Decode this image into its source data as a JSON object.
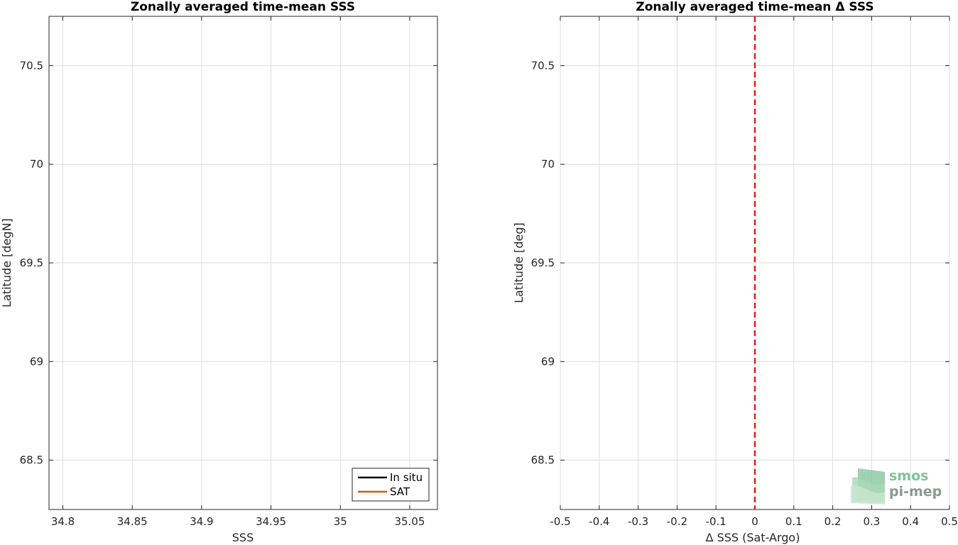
{
  "chart_data": [
    {
      "type": "line",
      "title": "Zonally averaged time-mean SSS",
      "xlabel": "SSS",
      "ylabel": "Latitude [degN]",
      "xlim": [
        34.79,
        35.07
      ],
      "ylim": [
        68.25,
        70.75
      ],
      "xticks": [
        34.8,
        34.85,
        34.9,
        34.95,
        35.0,
        35.05
      ],
      "xtick_labels": [
        "34.8",
        "34.85",
        "34.9",
        "34.95",
        "35",
        "35.05"
      ],
      "yticks": [
        68.5,
        69.0,
        69.5,
        70.0,
        70.5
      ],
      "ytick_labels": [
        "68.5",
        "69",
        "69.5",
        "70",
        "70.5"
      ],
      "grid": true,
      "legend_position": "bottom-right",
      "series": [
        {
          "name": "In situ",
          "color": "#000000",
          "values": []
        },
        {
          "name": "SAT",
          "color": "#d95319",
          "values": []
        }
      ]
    },
    {
      "type": "line",
      "title": "Zonally averaged time-mean Δ SSS",
      "xlabel": "Δ SSS (Sat-Argo)",
      "ylabel": "Latitude [deg]",
      "xlim": [
        -0.5,
        0.5
      ],
      "ylim": [
        68.25,
        70.75
      ],
      "xticks": [
        -0.5,
        -0.4,
        -0.3,
        -0.2,
        -0.1,
        0.0,
        0.1,
        0.2,
        0.3,
        0.4,
        0.5
      ],
      "xtick_labels": [
        "-0.5",
        "-0.4",
        "-0.3",
        "-0.2",
        "-0.1",
        "0",
        "0.1",
        "0.2",
        "0.3",
        "0.4",
        "0.5"
      ],
      "yticks": [
        68.5,
        69.0,
        69.5,
        70.0,
        70.5
      ],
      "ytick_labels": [
        "68.5",
        "69",
        "69.5",
        "70",
        "70.5"
      ],
      "grid": true,
      "reference_line": {
        "x": 0,
        "color": "#e41a1c",
        "style": "dashed"
      },
      "series": []
    }
  ],
  "logo": {
    "line1": "smos",
    "line2": "pi-mep",
    "color": "#7fc29b"
  }
}
